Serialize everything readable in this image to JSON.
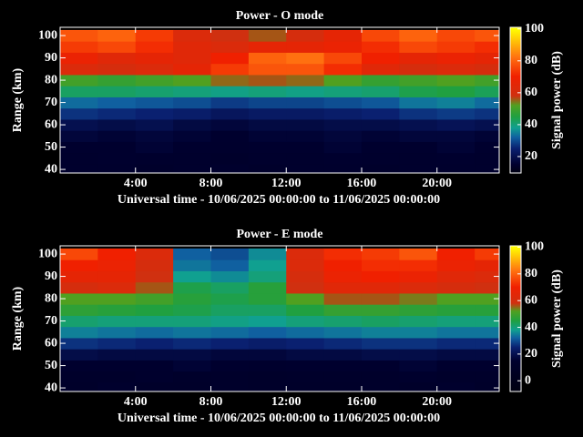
{
  "chart_data": [
    {
      "type": "heatmap",
      "title": "Power - O mode",
      "x_label": "Universal time - 10/06/2025 00:00:00 to 11/06/2025 00:00:00",
      "y_label": "Range (km)",
      "colorbar_label": "Signal power (dB)",
      "x": [
        1,
        3,
        5,
        7,
        9,
        11,
        13,
        15,
        17,
        19,
        21,
        23
      ],
      "y": [
        40,
        45,
        50,
        55,
        60,
        65,
        70,
        75,
        80,
        85,
        90,
        95,
        100
      ],
      "z": [
        [
          14,
          14,
          13,
          14,
          14,
          13,
          14,
          14,
          13,
          14,
          14,
          14
        ],
        [
          14,
          15,
          14,
          14,
          13,
          14,
          14,
          15,
          14,
          14,
          15,
          14
        ],
        [
          15,
          15,
          16,
          15,
          14,
          15,
          15,
          16,
          15,
          15,
          16,
          15
        ],
        [
          17,
          16,
          17,
          16,
          15,
          16,
          16,
          17,
          16,
          17,
          17,
          16
        ],
        [
          20,
          19,
          20,
          18,
          17,
          18,
          18,
          19,
          19,
          20,
          21,
          20
        ],
        [
          27,
          26,
          25,
          24,
          22,
          23,
          23,
          24,
          25,
          27,
          28,
          27
        ],
        [
          33,
          32,
          31,
          30,
          28,
          29,
          29,
          30,
          31,
          34,
          35,
          33
        ],
        [
          42,
          42,
          41,
          40,
          39,
          40,
          39,
          40,
          41,
          44,
          45,
          43
        ],
        [
          50,
          48,
          50,
          52,
          55,
          56,
          55,
          52,
          48,
          50,
          52,
          50
        ],
        [
          62,
          60,
          62,
          66,
          74,
          78,
          78,
          72,
          64,
          60,
          62,
          60
        ],
        [
          68,
          64,
          66,
          64,
          70,
          80,
          82,
          76,
          70,
          66,
          68,
          66
        ],
        [
          74,
          76,
          72,
          64,
          62,
          66,
          66,
          68,
          72,
          76,
          74,
          72
        ],
        [
          78,
          80,
          74,
          62,
          58,
          56,
          60,
          66,
          76,
          80,
          76,
          78
        ]
      ],
      "xlim": [
        0,
        23.3
      ],
      "ylim": [
        38.4,
        103.7
      ],
      "xticks": [
        {
          "value": 4,
          "label": "4:00"
        },
        {
          "value": 8,
          "label": "8:00"
        },
        {
          "value": 12,
          "label": "12:00"
        },
        {
          "value": 16,
          "label": "16:00"
        },
        {
          "value": 20,
          "label": "20:00"
        }
      ],
      "yticks": [
        40,
        50,
        60,
        70,
        80,
        90,
        100
      ],
      "clim": [
        9.7,
        101
      ],
      "cticks": [
        20,
        40,
        60,
        80,
        100
      ],
      "colormap": [
        [
          -8,
          "#000010"
        ],
        [
          15,
          "#00002e"
        ],
        [
          25,
          "#0a2070"
        ],
        [
          32,
          "#1060a0"
        ],
        [
          38,
          "#10a090"
        ],
        [
          45,
          "#20a040"
        ],
        [
          52,
          "#50a020"
        ],
        [
          58,
          "#d03010"
        ],
        [
          70,
          "#f02000"
        ],
        [
          82,
          "#ff7010"
        ],
        [
          100,
          "#ffff00"
        ]
      ]
    },
    {
      "type": "heatmap",
      "title": "Power - E mode",
      "x_label": "Universal time - 10/06/2025 00:00:00 to 11/06/2025 00:00:00",
      "y_label": "Range (km)",
      "colorbar_label": "Signal power (dB)",
      "x": [
        1,
        3,
        5,
        7,
        9,
        11,
        13,
        15,
        17,
        19,
        21,
        23
      ],
      "y": [
        40,
        45,
        50,
        55,
        60,
        65,
        70,
        75,
        80,
        85,
        90,
        95,
        100
      ],
      "z": [
        [
          12,
          14,
          12,
          12,
          13,
          12,
          12,
          12,
          13,
          12,
          14,
          12
        ],
        [
          13,
          13,
          14,
          13,
          13,
          12,
          13,
          13,
          13,
          14,
          13,
          13
        ],
        [
          15,
          15,
          15,
          16,
          15,
          14,
          15,
          15,
          15,
          16,
          15,
          15
        ],
        [
          19,
          18,
          18,
          18,
          17,
          17,
          18,
          18,
          19,
          19,
          18,
          18
        ],
        [
          27,
          26,
          25,
          26,
          25,
          24,
          25,
          26,
          27,
          27,
          26,
          26
        ],
        [
          35,
          34,
          33,
          34,
          33,
          32,
          33,
          34,
          35,
          35,
          34,
          34
        ],
        [
          41,
          40,
          40,
          40,
          39,
          38,
          40,
          41,
          42,
          41,
          40,
          40
        ],
        [
          47,
          46,
          45,
          44,
          42,
          42,
          45,
          48,
          48,
          47,
          46,
          46
        ],
        [
          52,
          52,
          50,
          46,
          44,
          46,
          52,
          56,
          56,
          54,
          52,
          52
        ],
        [
          60,
          62,
          56,
          44,
          42,
          46,
          58,
          64,
          64,
          62,
          60,
          58
        ],
        [
          66,
          66,
          58,
          38,
          36,
          40,
          60,
          68,
          70,
          68,
          64,
          62
        ],
        [
          70,
          68,
          60,
          34,
          32,
          38,
          62,
          70,
          72,
          72,
          68,
          66
        ],
        [
          76,
          70,
          62,
          32,
          30,
          36,
          62,
          72,
          74,
          78,
          70,
          74
        ]
      ],
      "xlim": [
        0,
        23.3
      ],
      "ylim": [
        38.4,
        103.7
      ],
      "xticks": [
        {
          "value": 4,
          "label": "4:00"
        },
        {
          "value": 8,
          "label": "8:00"
        },
        {
          "value": 12,
          "label": "12:00"
        },
        {
          "value": 16,
          "label": "16:00"
        },
        {
          "value": 20,
          "label": "20:00"
        }
      ],
      "yticks": [
        40,
        50,
        60,
        70,
        80,
        90,
        100
      ],
      "clim": [
        -8,
        101
      ],
      "cticks": [
        0,
        20,
        40,
        60,
        80,
        100
      ],
      "colormap": [
        [
          -8,
          "#000010"
        ],
        [
          15,
          "#00002e"
        ],
        [
          25,
          "#0a2070"
        ],
        [
          32,
          "#1060a0"
        ],
        [
          38,
          "#10a090"
        ],
        [
          45,
          "#20a040"
        ],
        [
          52,
          "#50a020"
        ],
        [
          58,
          "#d03010"
        ],
        [
          70,
          "#f02000"
        ],
        [
          82,
          "#ff7010"
        ],
        [
          100,
          "#ffff00"
        ]
      ]
    }
  ]
}
